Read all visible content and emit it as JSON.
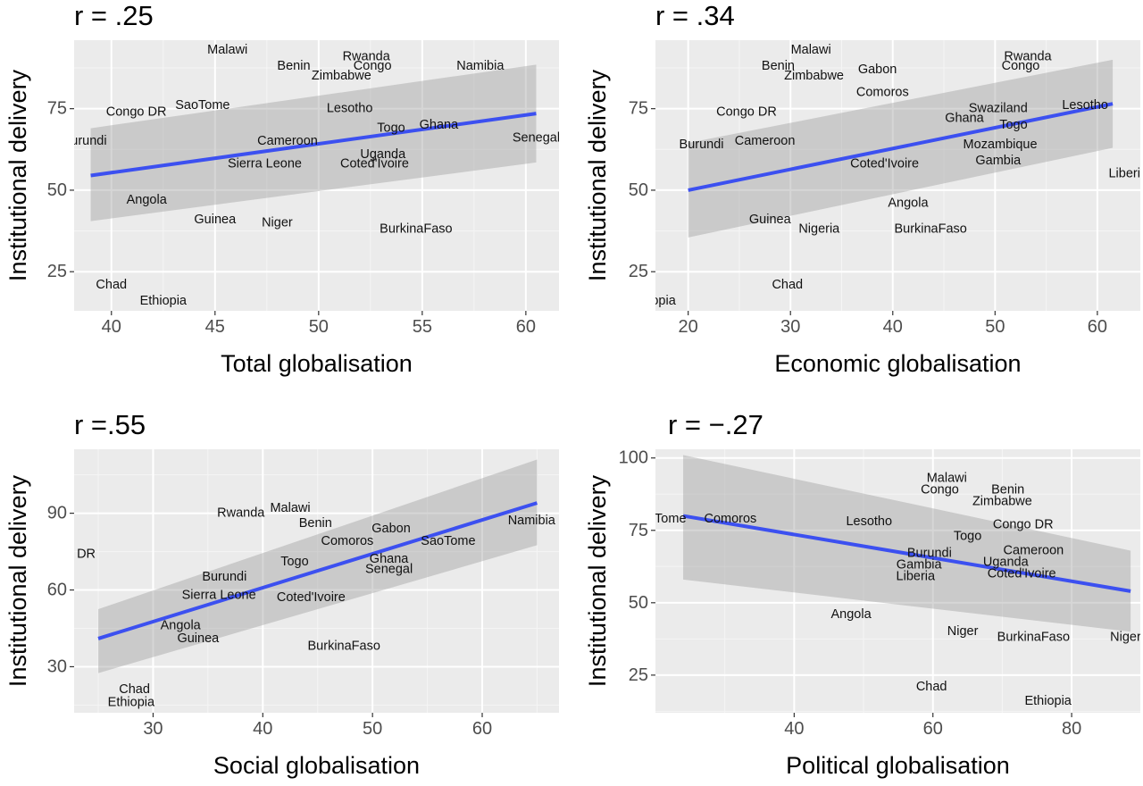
{
  "chart_data": [
    {
      "type": "scatter",
      "title": "r = .25",
      "xlabel": "Total globalisation",
      "ylabel": "Institutional delivery",
      "xlim": [
        38.2,
        61.6
      ],
      "ylim": [
        13,
        96
      ],
      "xticks": [
        40,
        45,
        50,
        55,
        60
      ],
      "yticks": [
        25,
        50,
        75
      ],
      "grid": true,
      "points": [
        {
          "label": "Malawi",
          "x": 45.6,
          "y": 93
        },
        {
          "label": "Benin",
          "x": 48.8,
          "y": 88
        },
        {
          "label": "Rwanda",
          "x": 52.3,
          "y": 91
        },
        {
          "label": "Congo",
          "x": 52.6,
          "y": 88
        },
        {
          "label": "Zimbabwe",
          "x": 51.1,
          "y": 85
        },
        {
          "label": "Namibia",
          "x": 57.8,
          "y": 88
        },
        {
          "label": "Congo DR",
          "x": 41.2,
          "y": 74
        },
        {
          "label": "SaoTome",
          "x": 44.4,
          "y": 76
        },
        {
          "label": "Lesotho",
          "x": 51.5,
          "y": 75
        },
        {
          "label": "Togo",
          "x": 53.5,
          "y": 69
        },
        {
          "label": "Ghana",
          "x": 55.8,
          "y": 70
        },
        {
          "label": "Burundi",
          "x": 38.7,
          "y": 65
        },
        {
          "label": "Senegal",
          "x": 60.5,
          "y": 66
        },
        {
          "label": "Cameroon",
          "x": 48.5,
          "y": 65
        },
        {
          "label": "Uganda",
          "x": 53.1,
          "y": 61
        },
        {
          "label": "Coted'Ivoire",
          "x": 52.7,
          "y": 58
        },
        {
          "label": "Sierra Leone",
          "x": 47.4,
          "y": 58
        },
        {
          "label": "Angola",
          "x": 41.7,
          "y": 47
        },
        {
          "label": "Guinea",
          "x": 45.0,
          "y": 41
        },
        {
          "label": "Niger",
          "x": 48.0,
          "y": 40
        },
        {
          "label": "BurkinaFaso",
          "x": 54.7,
          "y": 38
        },
        {
          "label": "Chad",
          "x": 40.0,
          "y": 21
        },
        {
          "label": "Ethiopia",
          "x": 42.5,
          "y": 16
        }
      ],
      "fit": {
        "x": [
          39.0,
          60.5
        ],
        "y": [
          54.5,
          73.5
        ],
        "lower": [
          40.5,
          58.5
        ],
        "upper": [
          69,
          88.5
        ]
      }
    },
    {
      "type": "scatter",
      "title": "r = .34",
      "xlabel": "Economic globalisation",
      "ylabel": "Institutional delivery",
      "xlim": [
        16.8,
        64.2
      ],
      "ylim": [
        13,
        96
      ],
      "xticks": [
        20,
        30,
        40,
        50,
        60
      ],
      "yticks": [
        25,
        50,
        75
      ],
      "grid": true,
      "points": [
        {
          "label": "Malawi",
          "x": 32.0,
          "y": 93
        },
        {
          "label": "Benin",
          "x": 28.8,
          "y": 88
        },
        {
          "label": "Zimbabwe",
          "x": 32.3,
          "y": 85
        },
        {
          "label": "Gabon",
          "x": 38.5,
          "y": 87
        },
        {
          "label": "Rwanda",
          "x": 53.2,
          "y": 91
        },
        {
          "label": "Congo",
          "x": 52.5,
          "y": 88
        },
        {
          "label": "Comoros",
          "x": 39.0,
          "y": 80
        },
        {
          "label": "Congo DR",
          "x": 25.7,
          "y": 74
        },
        {
          "label": "Swaziland",
          "x": 50.3,
          "y": 75
        },
        {
          "label": "Lesotho",
          "x": 58.8,
          "y": 76
        },
        {
          "label": "Ghana",
          "x": 47.0,
          "y": 72
        },
        {
          "label": "Togo",
          "x": 51.8,
          "y": 70
        },
        {
          "label": "Burundi",
          "x": 21.3,
          "y": 64
        },
        {
          "label": "Cameroon",
          "x": 27.5,
          "y": 65
        },
        {
          "label": "Mozambique",
          "x": 50.5,
          "y": 64
        },
        {
          "label": "Gambia",
          "x": 50.3,
          "y": 59
        },
        {
          "label": "Coted'Ivoire",
          "x": 39.2,
          "y": 58
        },
        {
          "label": "Liberia",
          "x": 63.0,
          "y": 55
        },
        {
          "label": "Angola",
          "x": 41.5,
          "y": 46
        },
        {
          "label": "Guinea",
          "x": 28.0,
          "y": 41
        },
        {
          "label": "Nigeria",
          "x": 32.8,
          "y": 38
        },
        {
          "label": "BurkinaFaso",
          "x": 43.7,
          "y": 38
        },
        {
          "label": "Chad",
          "x": 29.7,
          "y": 21
        },
        {
          "label": "Ethiopia",
          "x": 16.5,
          "y": 16
        }
      ],
      "fit": {
        "x": [
          20,
          61.5
        ],
        "y": [
          50,
          76.5
        ],
        "lower": [
          35.5,
          63
        ],
        "upper": [
          64.5,
          90
        ]
      }
    },
    {
      "type": "scatter",
      "title": "r =.55",
      "xlabel": "Social globalisation",
      "ylabel": "Institutional delivery",
      "xlim": [
        22.8,
        67.0
      ],
      "ylim": [
        12,
        115
      ],
      "xticks": [
        30,
        40,
        50,
        60
      ],
      "yticks": [
        30,
        60,
        90
      ],
      "grid": true,
      "points": [
        {
          "label": "Rwanda",
          "x": 38.0,
          "y": 90
        },
        {
          "label": "Malawi",
          "x": 42.5,
          "y": 92
        },
        {
          "label": "Benin",
          "x": 44.8,
          "y": 86
        },
        {
          "label": "Gabon",
          "x": 51.7,
          "y": 84
        },
        {
          "label": "Namibia",
          "x": 64.5,
          "y": 87
        },
        {
          "label": "Comoros",
          "x": 47.7,
          "y": 79
        },
        {
          "label": "SaoTome",
          "x": 56.9,
          "y": 79
        },
        {
          "label": "Congo DR",
          "x": 22.0,
          "y": 74
        },
        {
          "label": "Togo",
          "x": 42.9,
          "y": 71
        },
        {
          "label": "Ghana",
          "x": 51.5,
          "y": 72
        },
        {
          "label": "Senegal",
          "x": 51.5,
          "y": 68
        },
        {
          "label": "Burundi",
          "x": 36.5,
          "y": 65
        },
        {
          "label": "Sierra Leone",
          "x": 36.0,
          "y": 58
        },
        {
          "label": "Coted'Ivoire",
          "x": 44.4,
          "y": 57
        },
        {
          "label": "Angola",
          "x": 32.5,
          "y": 46
        },
        {
          "label": "Guinea",
          "x": 34.1,
          "y": 41
        },
        {
          "label": "BurkinaFaso",
          "x": 47.4,
          "y": 38
        },
        {
          "label": "Chad",
          "x": 28.3,
          "y": 21
        },
        {
          "label": "Ethiopia",
          "x": 28.0,
          "y": 16
        }
      ],
      "fit": {
        "x": [
          25,
          65
        ],
        "y": [
          41,
          94
        ],
        "lower": [
          27.5,
          77.5
        ],
        "upper": [
          52.5,
          111
        ]
      }
    },
    {
      "type": "scatter",
      "title": "r = −.27",
      "xlabel": "Political globalisation",
      "ylabel": "Institutional delivery",
      "xlim": [
        20.0,
        89.9
      ],
      "ylim": [
        12,
        103
      ],
      "xticks": [
        40,
        60,
        80
      ],
      "yticks": [
        25,
        50,
        75,
        100
      ],
      "grid": true,
      "points": [
        {
          "label": "Malawi",
          "x": 62.0,
          "y": 93
        },
        {
          "label": "Congo",
          "x": 61.0,
          "y": 89
        },
        {
          "label": "Benin",
          "x": 70.8,
          "y": 89
        },
        {
          "label": "Zimbabwe",
          "x": 70.0,
          "y": 85
        },
        {
          "label": "SaoTome",
          "x": 20.5,
          "y": 79
        },
        {
          "label": "Comoros",
          "x": 30.8,
          "y": 79
        },
        {
          "label": "Lesotho",
          "x": 50.8,
          "y": 78
        },
        {
          "label": "Congo DR",
          "x": 73.0,
          "y": 77
        },
        {
          "label": "Togo",
          "x": 65.0,
          "y": 73
        },
        {
          "label": "Cameroon",
          "x": 74.5,
          "y": 68
        },
        {
          "label": "Burundi",
          "x": 59.5,
          "y": 67
        },
        {
          "label": "Uganda",
          "x": 70.5,
          "y": 64
        },
        {
          "label": "Gambia",
          "x": 58.0,
          "y": 63
        },
        {
          "label": "Coted'Ivoire",
          "x": 72.8,
          "y": 60
        },
        {
          "label": "Liberia",
          "x": 57.5,
          "y": 59
        },
        {
          "label": "Angola",
          "x": 48.2,
          "y": 46
        },
        {
          "label": "Niger",
          "x": 64.3,
          "y": 40
        },
        {
          "label": "BurkinaFaso",
          "x": 74.5,
          "y": 38
        },
        {
          "label": "Nigeria",
          "x": 88.5,
          "y": 38
        },
        {
          "label": "Chad",
          "x": 59.8,
          "y": 21
        },
        {
          "label": "Ethiopia",
          "x": 76.6,
          "y": 16
        }
      ],
      "fit": {
        "x": [
          24,
          88.5
        ],
        "y": [
          80,
          54
        ],
        "lower": [
          58,
          40
        ],
        "upper": [
          101,
          68
        ]
      }
    }
  ]
}
